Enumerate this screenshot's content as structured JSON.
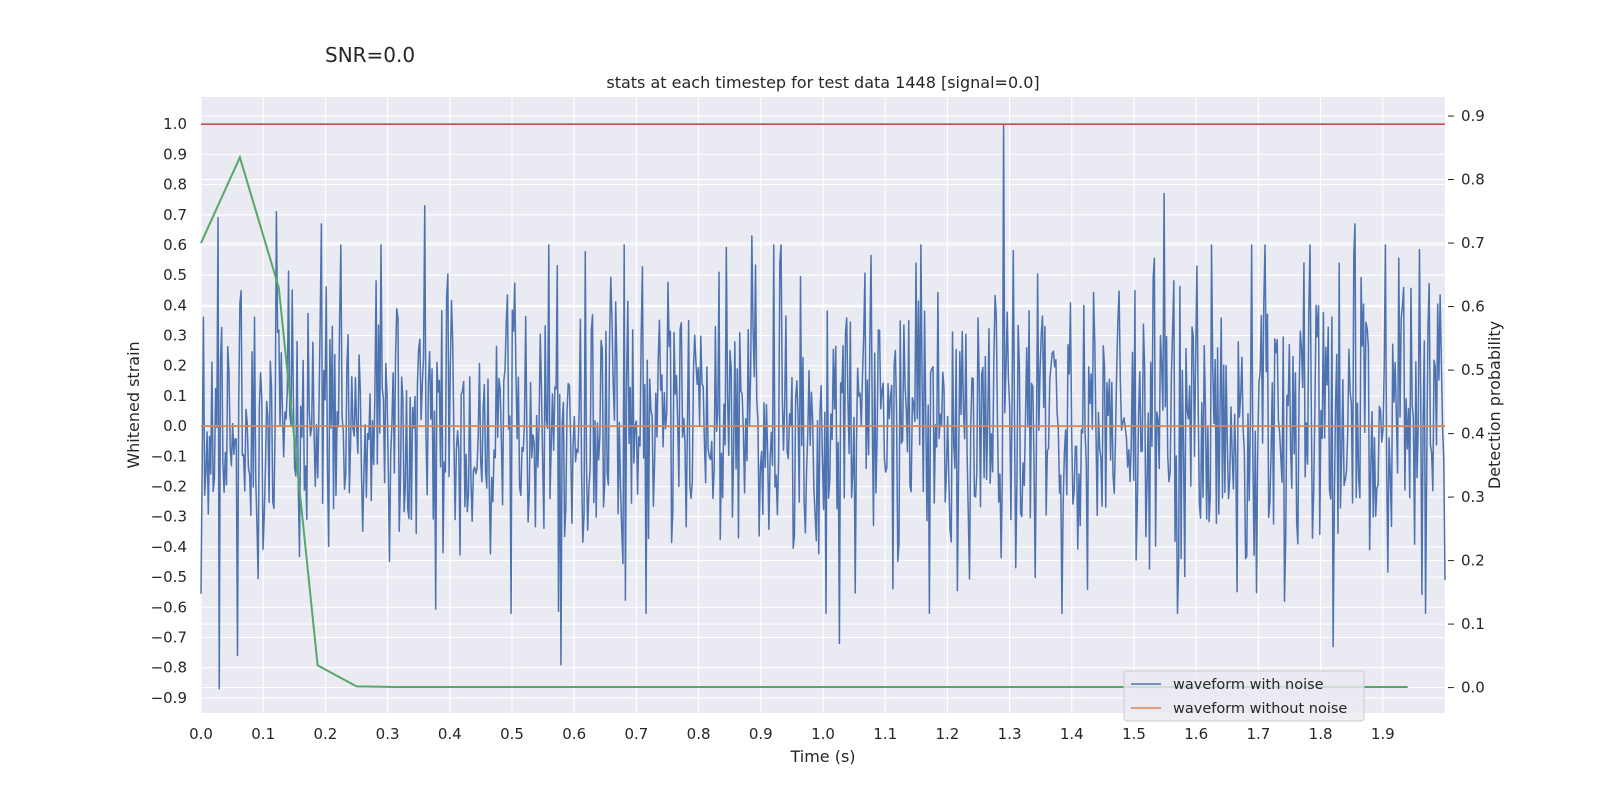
{
  "figure": {
    "suptitle": "SNR=0.0"
  },
  "chart_data": {
    "type": "line",
    "title": "stats at each timestep for test data 1448 [signal=0.0]",
    "xlabel": "Time (s)",
    "ylabel": "Whitened strain",
    "ylabel_right": "Detection probability",
    "xlim": [
      0.0,
      2.0
    ],
    "ylim": [
      -0.95,
      1.09
    ],
    "ylim_right": [
      -0.04,
      0.93
    ],
    "x_ticks": [
      "0.0",
      "0.1",
      "0.2",
      "0.3",
      "0.4",
      "0.5",
      "0.6",
      "0.7",
      "0.8",
      "0.9",
      "1.0",
      "1.1",
      "1.2",
      "1.3",
      "1.4",
      "1.5",
      "1.6",
      "1.7",
      "1.8",
      "1.9"
    ],
    "y_ticks": [
      "1.0",
      "0.9",
      "0.8",
      "0.7",
      "0.6",
      "0.5",
      "0.4",
      "0.3",
      "0.2",
      "0.1",
      "0.0",
      "−0.1",
      "−0.2",
      "−0.3",
      "−0.4",
      "−0.5",
      "−0.6",
      "−0.7",
      "−0.8",
      "−0.9"
    ],
    "y_ticks_right": [
      "0.9",
      "0.8",
      "0.7",
      "0.6",
      "0.5",
      "0.4",
      "0.3",
      "0.2",
      "0.1",
      "0.0"
    ],
    "grid": true,
    "legend_position": "lower-right",
    "threshold": {
      "value": 1.0,
      "color": "#c44e52"
    },
    "noise_series": {
      "name": "waveform with noise",
      "color": "#4c72b0",
      "x_start": 0.0,
      "x_end": 2.0,
      "n_points": 1024,
      "amplitude_sd": 0.25,
      "peaks": [
        {
          "x": 0.029,
          "y": -0.87
        },
        {
          "x": 0.058,
          "y": -0.76
        },
        {
          "x": 0.028,
          "y": 0.69
        },
        {
          "x": 0.122,
          "y": 0.71
        },
        {
          "x": 0.193,
          "y": 0.67
        },
        {
          "x": 0.359,
          "y": 0.73
        },
        {
          "x": 0.578,
          "y": -0.79
        },
        {
          "x": 0.885,
          "y": 0.63
        },
        {
          "x": 1.027,
          "y": -0.72
        },
        {
          "x": 1.29,
          "y": 1.0
        },
        {
          "x": 1.548,
          "y": 0.77
        },
        {
          "x": 1.82,
          "y": -0.73
        },
        {
          "x": 1.855,
          "y": 0.67
        }
      ]
    },
    "clean_series": {
      "name": "waveform without noise",
      "color": "#dd8452",
      "x": [
        0.0,
        2.0
      ],
      "y": [
        0.0,
        0.0
      ]
    },
    "probability_series": {
      "name": "Detection probability",
      "color": "#55a868",
      "axis": "right",
      "x": [
        0.0,
        0.0625,
        0.125,
        0.1875,
        0.25,
        0.3125,
        0.5,
        1.0,
        1.5,
        1.94
      ],
      "y": [
        0.7,
        0.835,
        0.63,
        0.035,
        0.002,
        0.001,
        0.001,
        0.001,
        0.001,
        0.001
      ]
    }
  }
}
